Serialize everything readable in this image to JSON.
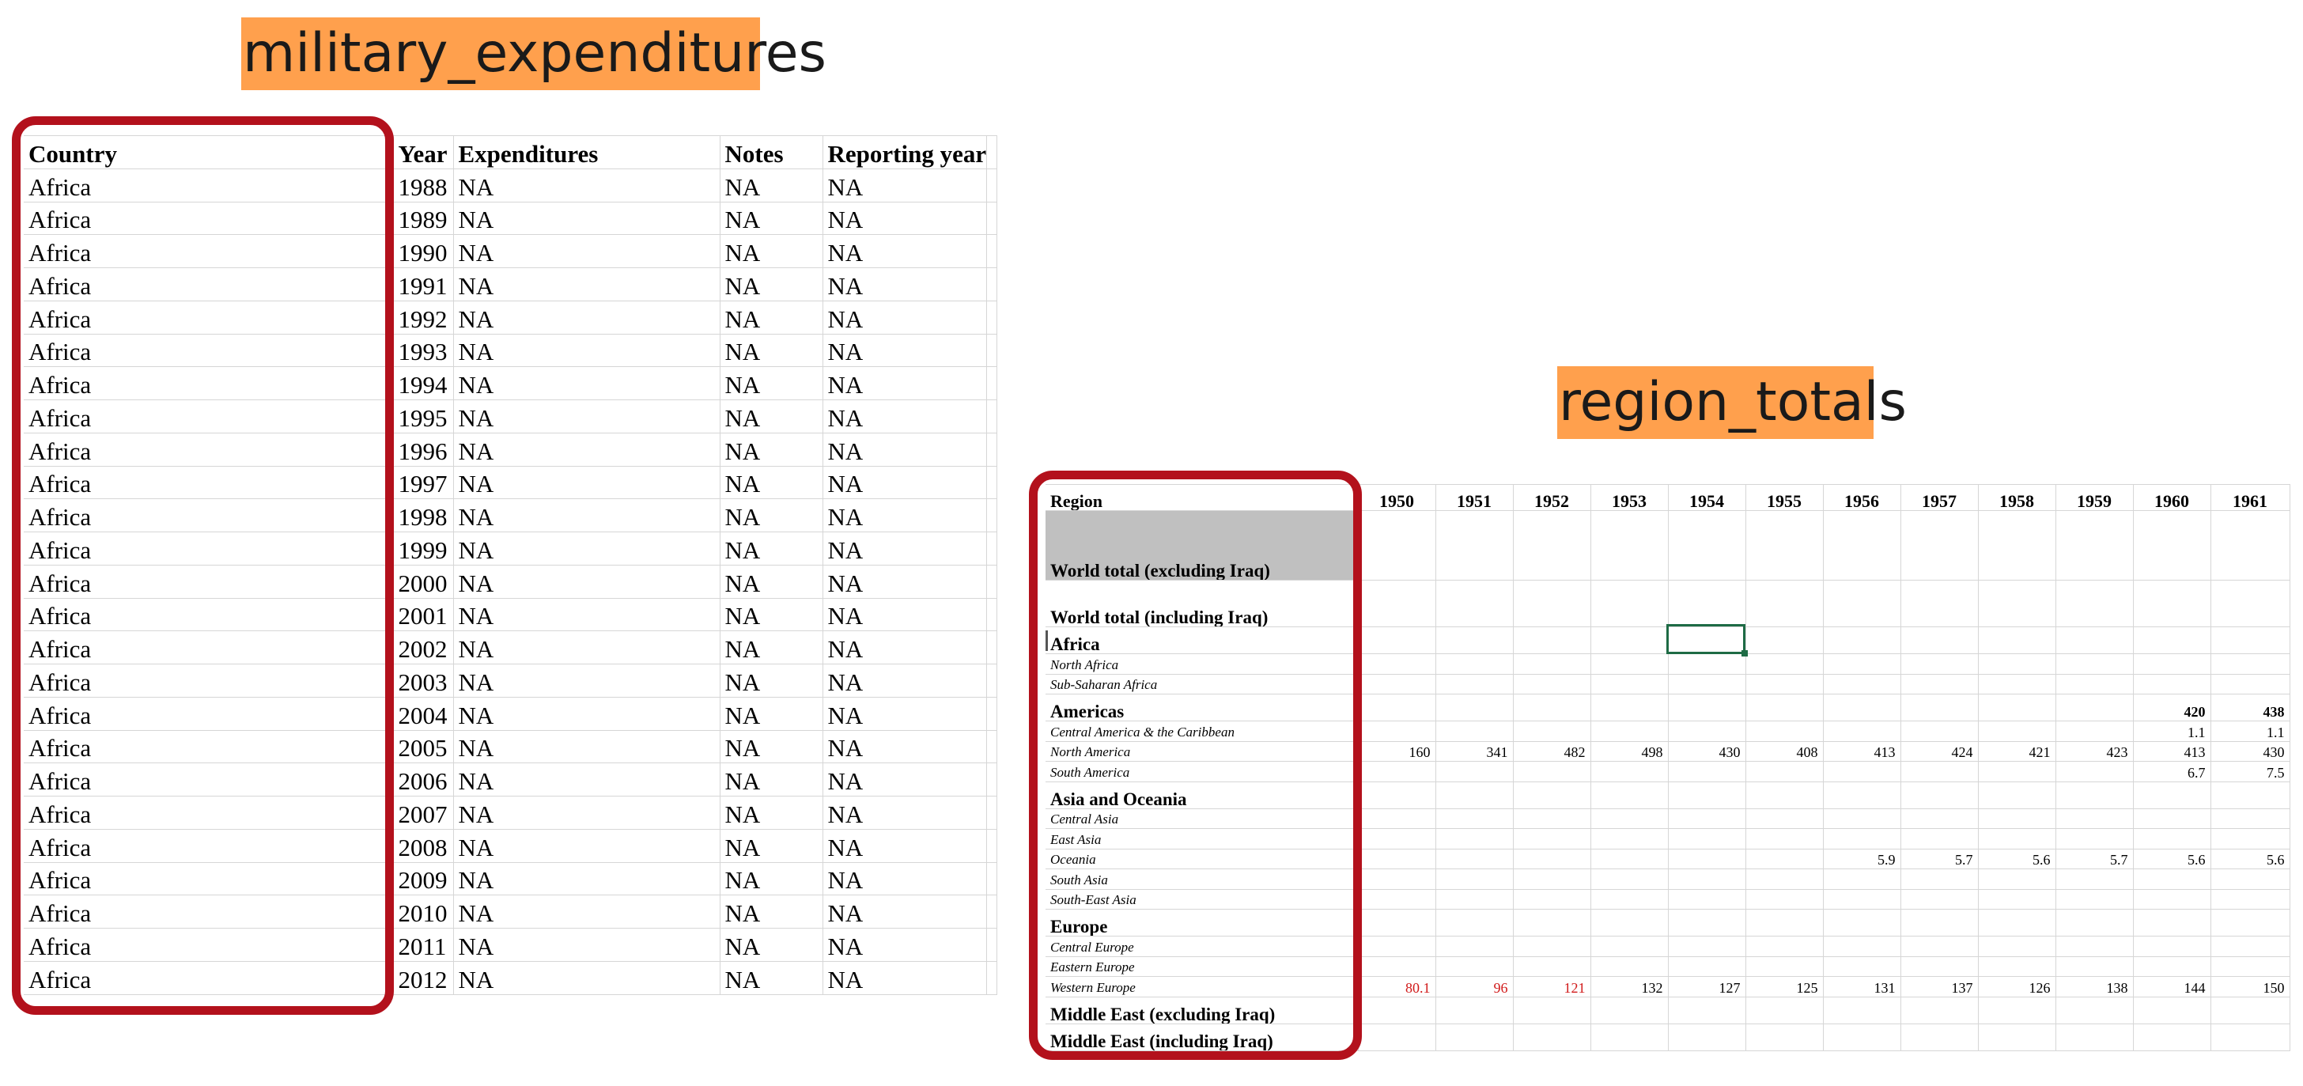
{
  "titles": {
    "left": "military_expenditures",
    "right": "region_totals"
  },
  "military_expenditures": {
    "headers": [
      "Country",
      "Year",
      "Expenditures",
      "Notes",
      "Reporting year"
    ],
    "rows": [
      [
        "Africa",
        "1988",
        "NA",
        "NA",
        "NA"
      ],
      [
        "Africa",
        "1989",
        "NA",
        "NA",
        "NA"
      ],
      [
        "Africa",
        "1990",
        "NA",
        "NA",
        "NA"
      ],
      [
        "Africa",
        "1991",
        "NA",
        "NA",
        "NA"
      ],
      [
        "Africa",
        "1992",
        "NA",
        "NA",
        "NA"
      ],
      [
        "Africa",
        "1993",
        "NA",
        "NA",
        "NA"
      ],
      [
        "Africa",
        "1994",
        "NA",
        "NA",
        "NA"
      ],
      [
        "Africa",
        "1995",
        "NA",
        "NA",
        "NA"
      ],
      [
        "Africa",
        "1996",
        "NA",
        "NA",
        "NA"
      ],
      [
        "Africa",
        "1997",
        "NA",
        "NA",
        "NA"
      ],
      [
        "Africa",
        "1998",
        "NA",
        "NA",
        "NA"
      ],
      [
        "Africa",
        "1999",
        "NA",
        "NA",
        "NA"
      ],
      [
        "Africa",
        "2000",
        "NA",
        "NA",
        "NA"
      ],
      [
        "Africa",
        "2001",
        "NA",
        "NA",
        "NA"
      ],
      [
        "Africa",
        "2002",
        "NA",
        "NA",
        "NA"
      ],
      [
        "Africa",
        "2003",
        "NA",
        "NA",
        "NA"
      ],
      [
        "Africa",
        "2004",
        "NA",
        "NA",
        "NA"
      ],
      [
        "Africa",
        "2005",
        "NA",
        "NA",
        "NA"
      ],
      [
        "Africa",
        "2006",
        "NA",
        "NA",
        "NA"
      ],
      [
        "Africa",
        "2007",
        "NA",
        "NA",
        "NA"
      ],
      [
        "Africa",
        "2008",
        "NA",
        "NA",
        "NA"
      ],
      [
        "Africa",
        "2009",
        "NA",
        "NA",
        "NA"
      ],
      [
        "Africa",
        "2010",
        "NA",
        "NA",
        "NA"
      ],
      [
        "Africa",
        "2011",
        "NA",
        "NA",
        "NA"
      ],
      [
        "Africa",
        "2012",
        "NA",
        "NA",
        "NA"
      ]
    ]
  },
  "region_totals": {
    "headers": [
      "Region",
      "1950",
      "1951",
      "1952",
      "1953",
      "1954",
      "1955",
      "1956",
      "1957",
      "1958",
      "1959",
      "1960",
      "1961"
    ],
    "rows": [
      {
        "region": "World total (excluding Iraq)",
        "level": "head",
        "shaded": true,
        "tall": true,
        "values": [
          "",
          "",
          "",
          "",
          "",
          "",
          "",
          "",
          "",
          "",
          "",
          ""
        ]
      },
      {
        "region": "World total (including Iraq)",
        "level": "head",
        "tall": true,
        "values": [
          "",
          "",
          "",
          "",
          "",
          "",
          "",
          "",
          "",
          "",
          "",
          ""
        ]
      },
      {
        "region": "Africa",
        "level": "head",
        "values": [
          "",
          "",
          "",
          "",
          "",
          "",
          "",
          "",
          "",
          "",
          "",
          ""
        ]
      },
      {
        "region": "North Africa",
        "level": "sub",
        "values": [
          "",
          "",
          "",
          "",
          "",
          "",
          "",
          "",
          "",
          "",
          "",
          ""
        ]
      },
      {
        "region": "Sub-Saharan Africa",
        "level": "sub",
        "values": [
          "",
          "",
          "",
          "",
          "",
          "",
          "",
          "",
          "",
          "",
          "",
          ""
        ]
      },
      {
        "region": "Americas",
        "level": "head",
        "bold_values": true,
        "values": [
          "",
          "",
          "",
          "",
          "",
          "",
          "",
          "",
          "",
          "",
          "420",
          "438"
        ]
      },
      {
        "region": "Central America & the Caribbean",
        "level": "sub",
        "values": [
          "",
          "",
          "",
          "",
          "",
          "",
          "",
          "",
          "",
          "",
          "1.1",
          "1.1"
        ]
      },
      {
        "region": "North America",
        "level": "sub",
        "values": [
          "160",
          "341",
          "482",
          "498",
          "430",
          "408",
          "413",
          "424",
          "421",
          "423",
          "413",
          "430"
        ]
      },
      {
        "region": "South America",
        "level": "sub",
        "values": [
          "",
          "",
          "",
          "",
          "",
          "",
          "",
          "",
          "",
          "",
          "6.7",
          "7.5"
        ]
      },
      {
        "region": "Asia and Oceania",
        "level": "head",
        "values": [
          "",
          "",
          "",
          "",
          "",
          "",
          "",
          "",
          "",
          "",
          "",
          ""
        ]
      },
      {
        "region": "Central Asia",
        "level": "sub",
        "values": [
          "",
          "",
          "",
          "",
          "",
          "",
          "",
          "",
          "",
          "",
          "",
          ""
        ]
      },
      {
        "region": "East Asia",
        "level": "sub",
        "values": [
          "",
          "",
          "",
          "",
          "",
          "",
          "",
          "",
          "",
          "",
          "",
          ""
        ]
      },
      {
        "region": "Oceania",
        "level": "sub",
        "values": [
          "",
          "",
          "",
          "",
          "",
          "",
          "5.9",
          "5.7",
          "5.6",
          "5.7",
          "5.6",
          "5.6"
        ]
      },
      {
        "region": "South Asia",
        "level": "sub",
        "values": [
          "",
          "",
          "",
          "",
          "",
          "",
          "",
          "",
          "",
          "",
          "",
          ""
        ]
      },
      {
        "region": "South-East Asia",
        "level": "sub",
        "values": [
          "",
          "",
          "",
          "",
          "",
          "",
          "",
          "",
          "",
          "",
          "",
          ""
        ]
      },
      {
        "region": "Europe",
        "level": "head",
        "values": [
          "",
          "",
          "",
          "",
          "",
          "",
          "",
          "",
          "",
          "",
          "",
          ""
        ]
      },
      {
        "region": "Central Europe",
        "level": "sub",
        "values": [
          "",
          "",
          "",
          "",
          "",
          "",
          "",
          "",
          "",
          "",
          "",
          ""
        ]
      },
      {
        "region": "Eastern Europe",
        "level": "sub",
        "values": [
          "",
          "",
          "",
          "",
          "",
          "",
          "",
          "",
          "",
          "",
          "",
          ""
        ]
      },
      {
        "region": "Western Europe",
        "level": "sub",
        "red_first": 3,
        "values": [
          "80.1",
          "96",
          "121",
          "132",
          "127",
          "125",
          "131",
          "137",
          "126",
          "138",
          "144",
          "150"
        ]
      },
      {
        "region": "Middle East (excluding Iraq)",
        "level": "head",
        "values": [
          "",
          "",
          "",
          "",
          "",
          "",
          "",
          "",
          "",
          "",
          "",
          ""
        ]
      },
      {
        "region": "Middle East (including Iraq)",
        "level": "head",
        "values": [
          "",
          "",
          "",
          "",
          "",
          "",
          "",
          "",
          "",
          "",
          "",
          ""
        ]
      }
    ]
  },
  "colors": {
    "title_badge": "#ffa04d",
    "highlight_border": "#b3111c",
    "selected_cell_border": "#1e6b45",
    "red_value": "#d11a1a",
    "shaded_row": "#c0c0c0"
  }
}
